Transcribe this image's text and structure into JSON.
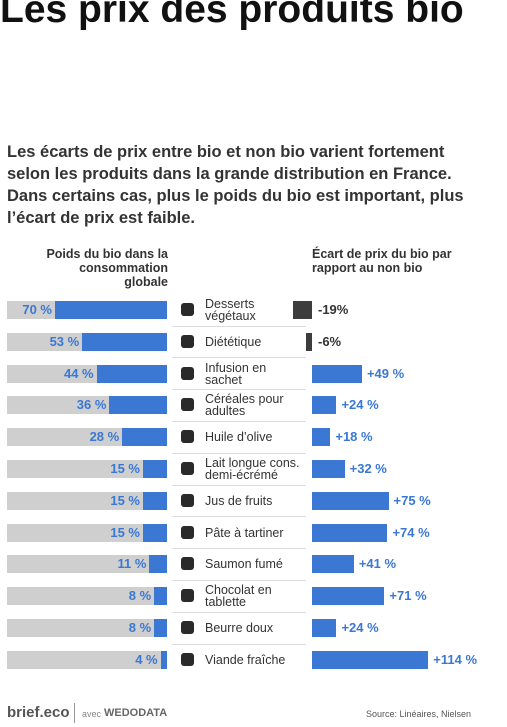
{
  "chart_data": {
    "type": "bar",
    "title": "Les prix des produits bio",
    "subtitle": "Les écarts de prix entre bio et non bio varient fortement selon les produits dans la grande distribution en France. Dans certains cas, plus le poids du bio est important, plus l’écart de prix est faible.",
    "categories": [
      "Desserts végétaux",
      "Diététique",
      "Infusion en sachet",
      "Céréales pour adultes",
      "Huile d’olive",
      "Lait longue cons. demi-écrémé",
      "Jus de fruits",
      "Pâte à tartiner",
      "Saumon fumé",
      "Chocolat en tablette",
      "Beurre doux",
      "Viande fraîche"
    ],
    "series": [
      {
        "name": "Poids du bio dans la consommation globale",
        "color": "#3a78d4",
        "background_color": "#cfcfcf",
        "values": [
          70,
          53,
          44,
          36,
          28,
          15,
          15,
          15,
          11,
          8,
          8,
          4
        ],
        "value_labels": [
          "70 %",
          "53 %",
          "44 %",
          "36 %",
          "28 %",
          "15 %",
          "15 %",
          "15 %",
          "11 %",
          "8 %",
          "8 %",
          "4 %"
        ]
      },
      {
        "name": "Écart de prix du bio par rapport au non bio",
        "color": "#3a78d4",
        "negative_color": "#3d3d3d",
        "values": [
          -19,
          -6,
          49,
          24,
          18,
          32,
          75,
          74,
          41,
          71,
          24,
          114
        ],
        "value_labels": [
          "-19%",
          "-6%",
          "+49 %",
          "+24 %",
          "+18 %",
          "+32 %",
          "+75 %",
          "+74 %",
          "+41 %",
          "+71 %",
          "+24 %",
          "+114 %"
        ]
      }
    ],
    "footer": {
      "brand": "brief.eco",
      "partner_prefix": "avec",
      "partner": "WEDODATA",
      "source": "Source: Linéaires, Nielsen"
    }
  }
}
